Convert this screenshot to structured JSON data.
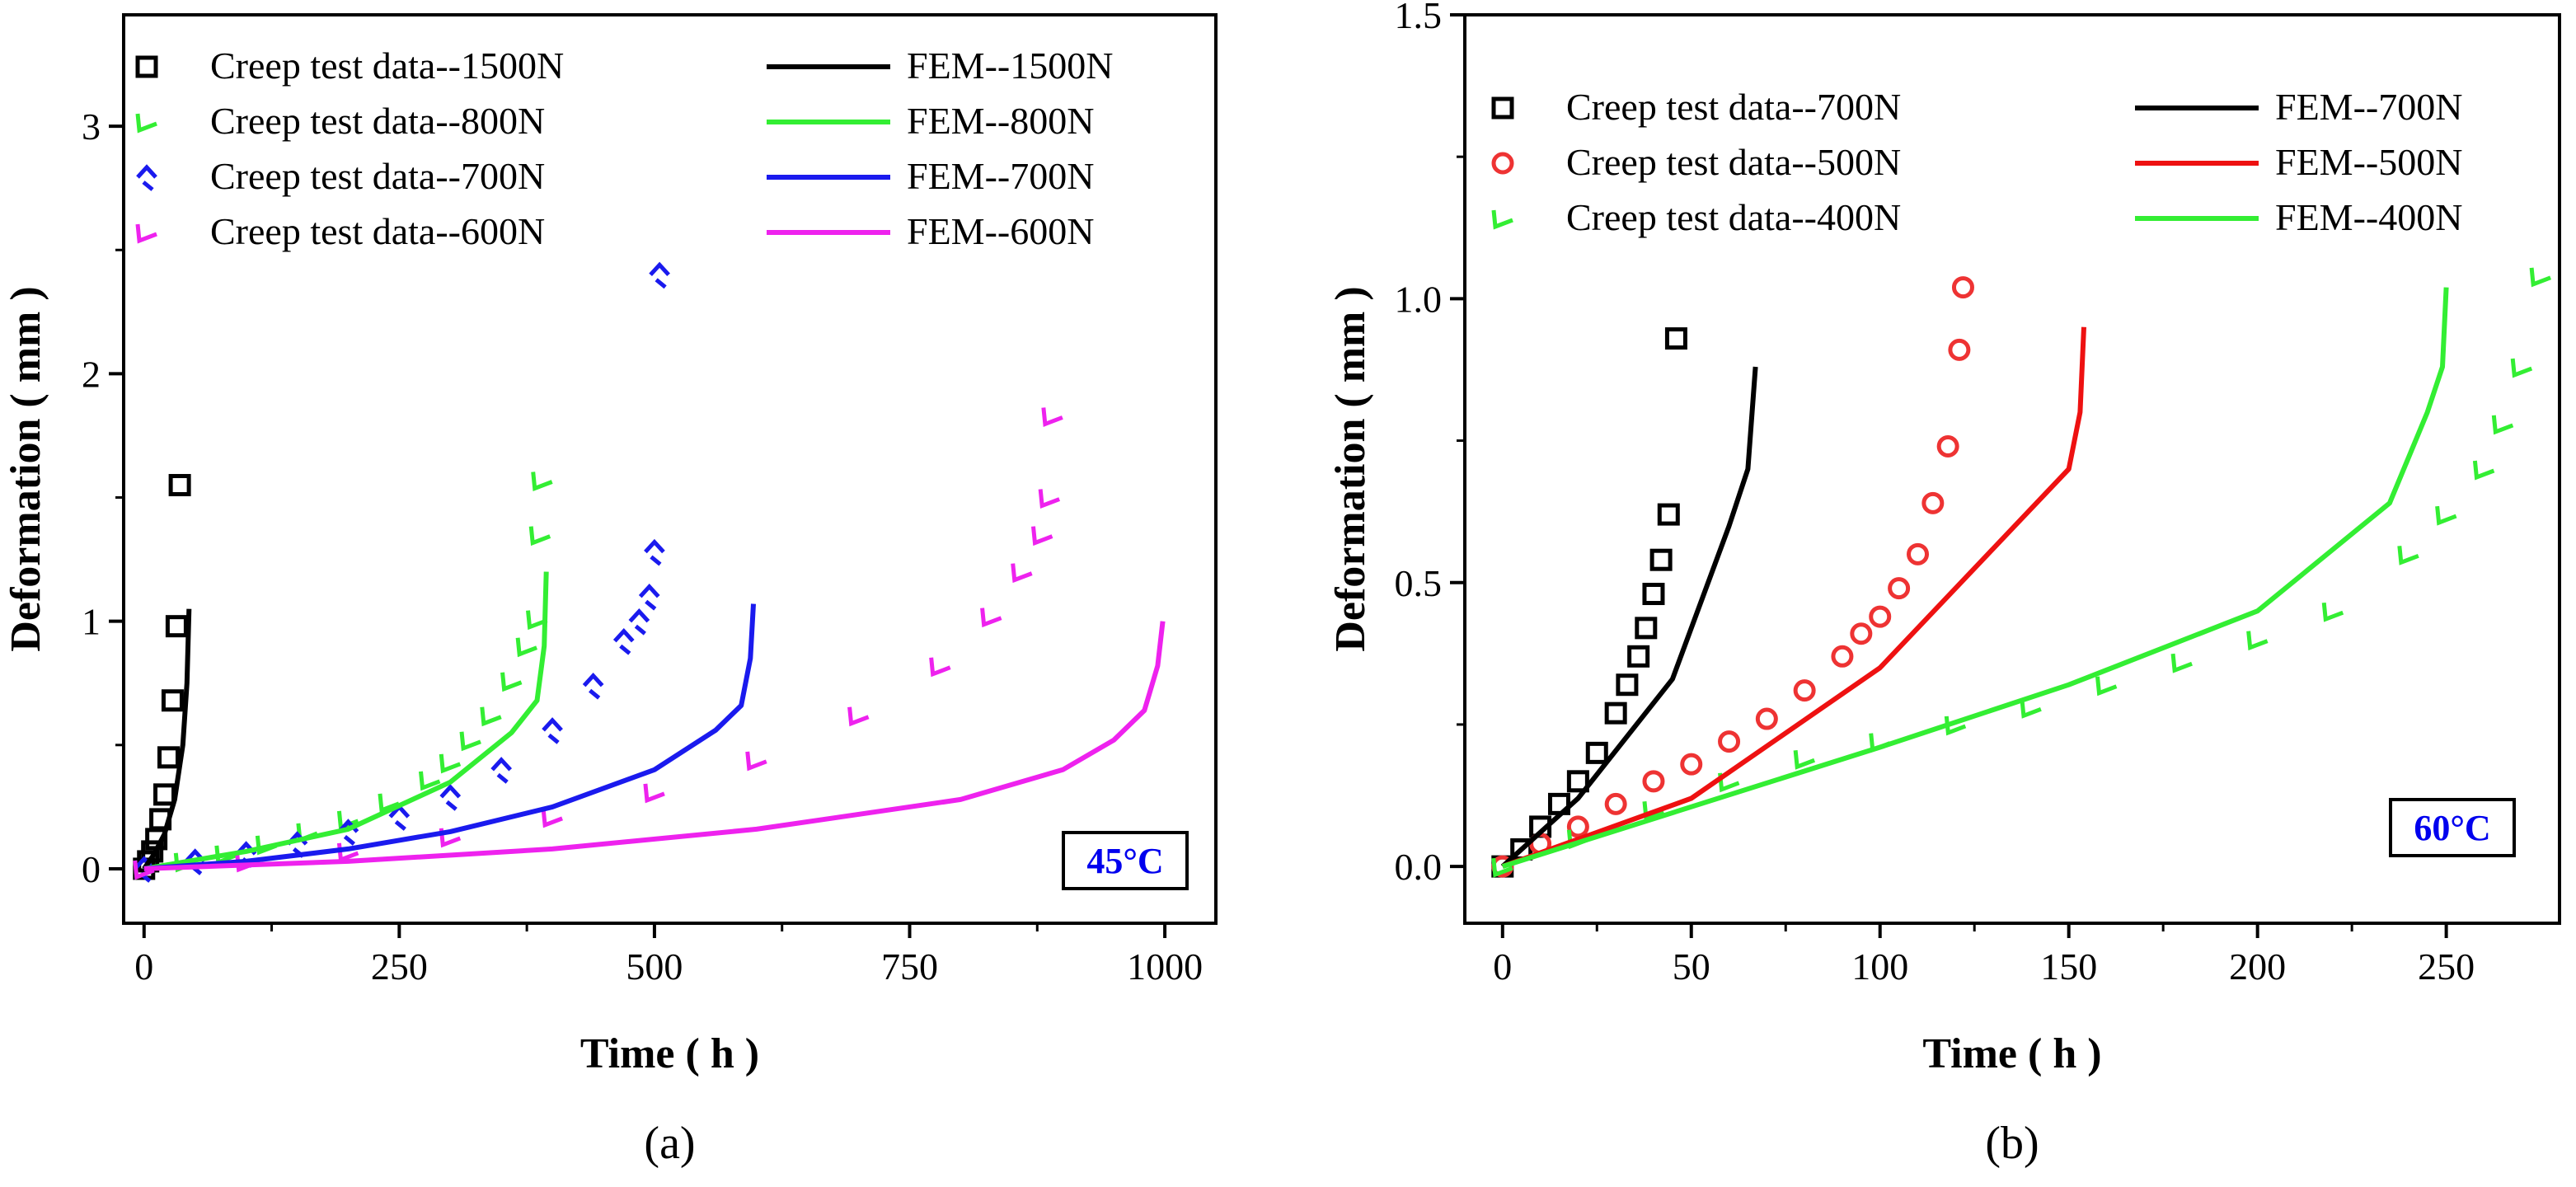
{
  "chart_data": [
    {
      "type": "scatter",
      "panel_label": "(a)",
      "xlabel": "Time ( h )",
      "ylabel": "Deformation ( mm )",
      "xlim": [
        -20,
        1050
      ],
      "ylim": [
        -0.22,
        3.45
      ],
      "xticks": [
        0,
        250,
        500,
        750,
        1000
      ],
      "yticks": [
        0,
        1,
        2,
        3
      ],
      "annotation": "45°C",
      "annotation_color": "#0000ee",
      "legend_placement": "top",
      "series": [
        {
          "name": "Creep test data--1500N",
          "kind": "test",
          "marker": "square",
          "color": "#000000",
          "x": [
            0,
            4,
            8,
            12,
            16,
            20,
            24,
            28,
            32,
            35
          ],
          "y": [
            0,
            0.03,
            0.07,
            0.12,
            0.2,
            0.3,
            0.45,
            0.68,
            0.98,
            1.55
          ]
        },
        {
          "name": "Creep test data--800N",
          "kind": "test",
          "marker": "tick",
          "color": "#33ee33",
          "x": [
            0,
            40,
            80,
            120,
            160,
            200,
            240,
            280,
            300,
            320,
            340,
            360,
            375,
            385,
            388,
            390
          ],
          "y": [
            0,
            0.03,
            0.06,
            0.1,
            0.15,
            0.2,
            0.27,
            0.36,
            0.43,
            0.52,
            0.62,
            0.76,
            0.9,
            1.01,
            1.35,
            1.57
          ]
        },
        {
          "name": "Creep test data--700N",
          "kind": "test",
          "marker": "diamond",
          "color": "#1a1aee",
          "x": [
            0,
            50,
            100,
            150,
            200,
            250,
            300,
            350,
            400,
            440,
            470,
            485,
            495,
            500,
            505
          ],
          "y": [
            0,
            0.03,
            0.06,
            0.1,
            0.15,
            0.21,
            0.29,
            0.4,
            0.56,
            0.74,
            0.92,
            1.0,
            1.1,
            1.28,
            2.4
          ]
        },
        {
          "name": "Creep test data--600N",
          "kind": "test",
          "marker": "tick",
          "color": "#ee22ee",
          "x": [
            0,
            100,
            200,
            300,
            400,
            500,
            600,
            700,
            780,
            830,
            860,
            880,
            887,
            890
          ],
          "y": [
            0,
            0.03,
            0.07,
            0.13,
            0.21,
            0.31,
            0.44,
            0.62,
            0.82,
            1.02,
            1.2,
            1.35,
            1.5,
            1.83
          ]
        },
        {
          "name": "FEM--1500N",
          "kind": "fem",
          "color": "#000000",
          "x": [
            0,
            10,
            20,
            30,
            38,
            42,
            44
          ],
          "y": [
            0,
            0.06,
            0.14,
            0.28,
            0.5,
            0.75,
            1.05
          ]
        },
        {
          "name": "FEM--800N",
          "kind": "fem",
          "color": "#33ee33",
          "x": [
            0,
            100,
            200,
            300,
            360,
            385,
            392,
            394
          ],
          "y": [
            0,
            0.07,
            0.16,
            0.35,
            0.55,
            0.68,
            0.9,
            1.2
          ]
        },
        {
          "name": "FEM--700N",
          "kind": "fem",
          "color": "#1a1aee",
          "x": [
            0,
            100,
            200,
            300,
            400,
            500,
            560,
            585,
            594,
            597
          ],
          "y": [
            0,
            0.03,
            0.08,
            0.15,
            0.25,
            0.4,
            0.56,
            0.66,
            0.85,
            1.07
          ]
        },
        {
          "name": "FEM--600N",
          "kind": "fem",
          "color": "#ee22ee",
          "x": [
            0,
            200,
            400,
            600,
            800,
            900,
            950,
            980,
            993,
            998
          ],
          "y": [
            0,
            0.03,
            0.08,
            0.16,
            0.28,
            0.4,
            0.52,
            0.64,
            0.82,
            1.0
          ]
        }
      ]
    },
    {
      "type": "scatter",
      "panel_label": "(b)",
      "xlabel": "Time ( h )",
      "ylabel": "Deformation ( mm )",
      "xlim": [
        -10,
        280
      ],
      "ylim": [
        -0.1,
        1.5
      ],
      "xticks": [
        0,
        50,
        100,
        150,
        200,
        250
      ],
      "yticks": [
        0.0,
        0.5,
        1.0,
        1.5
      ],
      "annotation": "60°C",
      "annotation_color": "#0000ee",
      "legend_placement": "top",
      "series": [
        {
          "name": "Creep test data--700N",
          "kind": "test",
          "marker": "square",
          "color": "#000000",
          "x": [
            0,
            5,
            10,
            15,
            20,
            25,
            30,
            33,
            36,
            38,
            40,
            42,
            44,
            46
          ],
          "y": [
            0,
            0.03,
            0.07,
            0.11,
            0.15,
            0.2,
            0.27,
            0.32,
            0.37,
            0.42,
            0.48,
            0.54,
            0.62,
            0.93
          ]
        },
        {
          "name": "Creep test data--500N",
          "kind": "test",
          "marker": "circle",
          "color": "#ee3333",
          "x": [
            0,
            10,
            20,
            30,
            40,
            50,
            60,
            70,
            80,
            90,
            95,
            100,
            105,
            110,
            114,
            118,
            121,
            122
          ],
          "y": [
            0,
            0.04,
            0.07,
            0.11,
            0.15,
            0.18,
            0.22,
            0.26,
            0.31,
            0.37,
            0.41,
            0.44,
            0.49,
            0.55,
            0.64,
            0.74,
            0.91,
            1.02
          ]
        },
        {
          "name": "Creep test data--400N",
          "kind": "test",
          "marker": "tick",
          "color": "#33ee33",
          "x": [
            0,
            20,
            40,
            60,
            80,
            100,
            120,
            140,
            160,
            180,
            200,
            220,
            240,
            250,
            260,
            265,
            270,
            275
          ],
          "y": [
            0,
            0.05,
            0.1,
            0.15,
            0.19,
            0.22,
            0.25,
            0.28,
            0.32,
            0.36,
            0.4,
            0.45,
            0.55,
            0.62,
            0.7,
            0.78,
            0.88,
            1.04
          ]
        },
        {
          "name": "FEM--700N",
          "kind": "fem",
          "color": "#000000",
          "x": [
            0,
            20,
            45,
            60,
            65,
            67
          ],
          "y": [
            0,
            0.12,
            0.33,
            0.6,
            0.7,
            0.88
          ]
        },
        {
          "name": "FEM--500N",
          "kind": "fem",
          "color": "#ee1111",
          "x": [
            0,
            50,
            100,
            130,
            150,
            153,
            154
          ],
          "y": [
            0,
            0.12,
            0.35,
            0.56,
            0.7,
            0.8,
            0.95
          ]
        },
        {
          "name": "FEM--400N",
          "kind": "fem",
          "color": "#33ee33",
          "x": [
            0,
            100,
            150,
            200,
            235,
            245,
            249,
            250
          ],
          "y": [
            0,
            0.21,
            0.32,
            0.45,
            0.64,
            0.8,
            0.88,
            1.02
          ]
        }
      ]
    }
  ]
}
